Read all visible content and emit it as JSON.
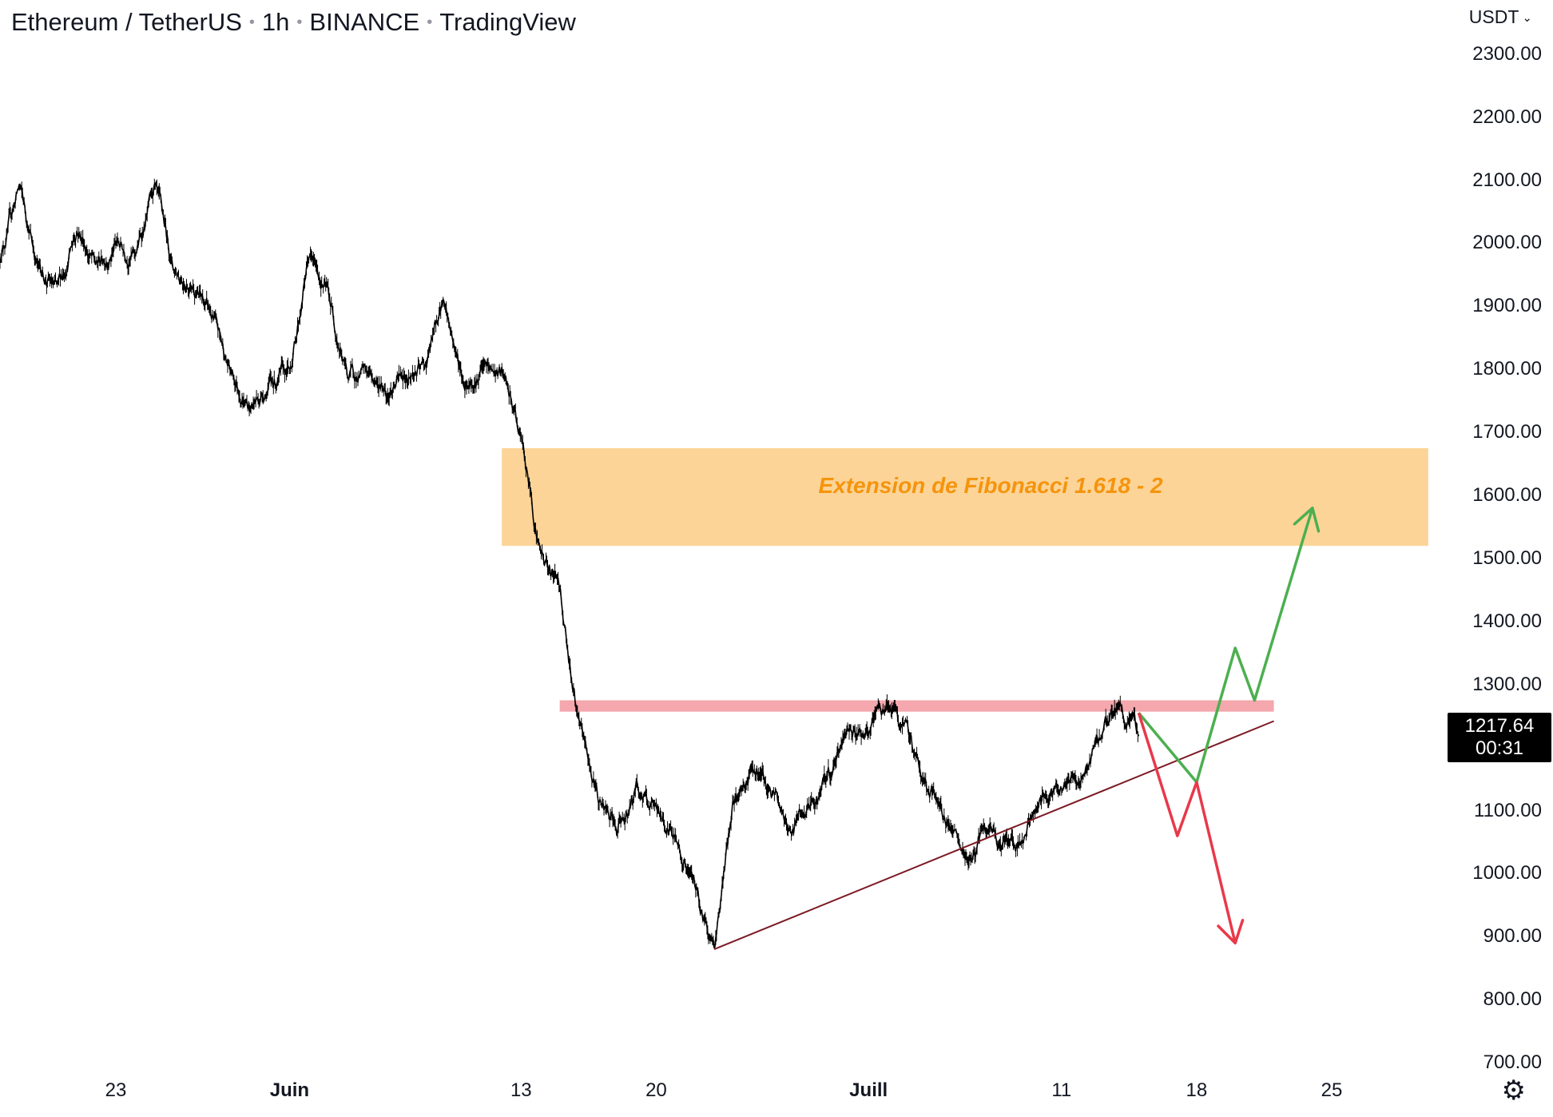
{
  "header": {
    "symbol": "Ethereum / TetherUS",
    "interval": "1h",
    "exchange": "BINANCE",
    "source": "TradingView"
  },
  "currency": "USDT",
  "last_price": {
    "value": "1217.64",
    "countdown": "00:31"
  },
  "zone_label": "Extension de Fibonacci 1.618 - 2",
  "colors": {
    "candles": "#000000",
    "fib_zone": "#fcd497",
    "fib_label": "#f5940d",
    "resistance": "#f4a7ad",
    "trendline": "#7b1a24",
    "bull_path": "#4caf50",
    "bear_path": "#e8394a"
  },
  "icons": {
    "settings": "gear-icon",
    "currency_menu": "chevron-down-icon"
  },
  "chart_data": {
    "type": "line",
    "title": "",
    "x_ticks": [
      {
        "label": "23",
        "date": "2022-05-23",
        "bold": false
      },
      {
        "label": "Juin",
        "date": "2022-06-01",
        "bold": true
      },
      {
        "label": "13",
        "date": "2022-06-13",
        "bold": false
      },
      {
        "label": "20",
        "date": "2022-06-20",
        "bold": false
      },
      {
        "label": "Juill",
        "date": "2022-07-01",
        "bold": true
      },
      {
        "label": "11",
        "date": "2022-07-11",
        "bold": false
      },
      {
        "label": "18",
        "date": "2022-07-18",
        "bold": false
      },
      {
        "label": "25",
        "date": "2022-07-25",
        "bold": false
      }
    ],
    "y_ticks": [
      "2300.00",
      "2200.00",
      "2100.00",
      "2000.00",
      "1900.00",
      "1800.00",
      "1700.00",
      "1600.00",
      "1500.00",
      "1400.00",
      "1300.00",
      "1100.00",
      "1000.00",
      "900.00",
      "800.00",
      "700.00"
    ],
    "y_range": [
      690,
      2320
    ],
    "x_range": [
      "2022-05-17",
      "2022-07-31"
    ],
    "series": [
      {
        "points": [
          [
            "2022-05-17",
            1980
          ],
          [
            "2022-05-18",
            2090
          ],
          [
            "2022-05-19",
            1960
          ],
          [
            "2022-05-20",
            1920
          ],
          [
            "2022-05-21",
            2030
          ],
          [
            "2022-05-22",
            1960
          ],
          [
            "2022-05-23",
            2000
          ],
          [
            "2022-05-24",
            1980
          ],
          [
            "2022-05-25",
            2080
          ],
          [
            "2022-05-26",
            1960
          ],
          [
            "2022-05-27",
            1940
          ],
          [
            "2022-05-28",
            1880
          ],
          [
            "2022-05-29",
            1790
          ],
          [
            "2022-05-30",
            1740
          ],
          [
            "2022-05-31",
            1780
          ],
          [
            "2022-06-01",
            1790
          ],
          [
            "2022-06-02",
            1980
          ],
          [
            "2022-06-03",
            1920
          ],
          [
            "2022-06-04",
            1790
          ],
          [
            "2022-06-05",
            1790
          ],
          [
            "2022-06-06",
            1770
          ],
          [
            "2022-06-07",
            1790
          ],
          [
            "2022-06-08",
            1800
          ],
          [
            "2022-06-09",
            1910
          ],
          [
            "2022-06-10",
            1780
          ],
          [
            "2022-06-11",
            1800
          ],
          [
            "2022-06-12",
            1790
          ],
          [
            "2022-06-13",
            1690
          ],
          [
            "2022-06-14",
            1510
          ],
          [
            "2022-06-15",
            1460
          ],
          [
            "2022-06-16",
            1230
          ],
          [
            "2022-06-17",
            1120
          ],
          [
            "2022-06-18",
            1060
          ],
          [
            "2022-06-19",
            1140
          ],
          [
            "2022-06-20",
            1090
          ],
          [
            "2022-06-21",
            1060
          ],
          [
            "2022-06-22",
            975
          ],
          [
            "2022-06-23",
            885
          ],
          [
            "2022-06-24",
            1110
          ],
          [
            "2022-06-25",
            1170
          ],
          [
            "2022-06-26",
            1130
          ],
          [
            "2022-06-27",
            1070
          ],
          [
            "2022-06-28",
            1100
          ],
          [
            "2022-06-29",
            1150
          ],
          [
            "2022-06-30",
            1240
          ],
          [
            "2022-07-01",
            1220
          ],
          [
            "2022-07-02",
            1270
          ],
          [
            "2022-07-03",
            1220
          ],
          [
            "2022-07-04",
            1140
          ],
          [
            "2022-07-05",
            1090
          ],
          [
            "2022-07-06",
            1010
          ],
          [
            "2022-07-07",
            1060
          ],
          [
            "2022-07-08",
            1050
          ],
          [
            "2022-07-09",
            1060
          ],
          [
            "2022-07-10",
            1120
          ],
          [
            "2022-07-11",
            1150
          ],
          [
            "2022-07-12",
            1140
          ],
          [
            "2022-07-13",
            1220
          ],
          [
            "2022-07-14",
            1265
          ],
          [
            "2022-07-15",
            1218
          ]
        ]
      }
    ],
    "annotations": [
      {
        "type": "zone",
        "label": "Extension de Fibonacci 1.618 - 2",
        "from": "2022-06-12",
        "to": "2022-07-30",
        "low": 1520,
        "high": 1675
      },
      {
        "type": "resistance",
        "from": "2022-06-15",
        "to": "2022-07-22",
        "low": 1257,
        "high": 1275
      },
      {
        "type": "trendline",
        "points": [
          [
            "2022-06-23",
            880
          ],
          [
            "2022-07-22",
            1242
          ]
        ]
      },
      {
        "type": "bullish-path",
        "points": [
          [
            "2022-07-15",
            1255
          ],
          [
            "2022-07-18",
            1145
          ],
          [
            "2022-07-20",
            1358
          ],
          [
            "2022-07-21",
            1275
          ],
          [
            "2022-07-24",
            1580
          ]
        ]
      },
      {
        "type": "bearish-path",
        "points": [
          [
            "2022-07-15",
            1255
          ],
          [
            "2022-07-17",
            1060
          ],
          [
            "2022-07-18",
            1145
          ],
          [
            "2022-07-20",
            890
          ]
        ]
      }
    ]
  }
}
